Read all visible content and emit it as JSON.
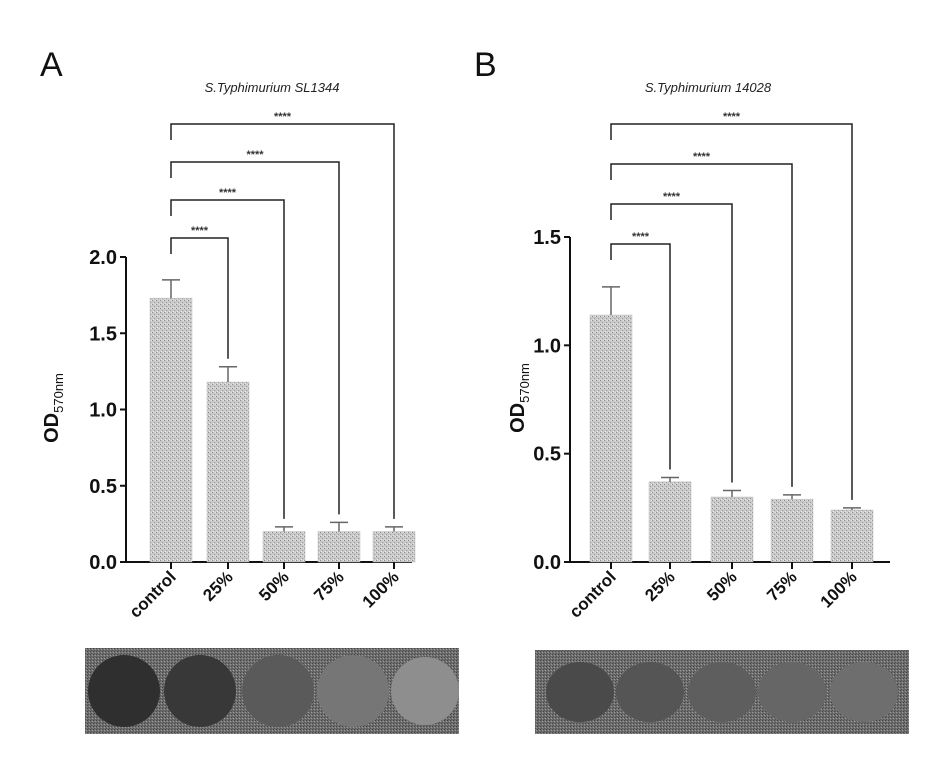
{
  "panels": [
    {
      "letter": "A",
      "title": "S.Typhimurium SL1344",
      "ylabel_main": "OD",
      "ylabel_sub": "570nm"
    },
    {
      "letter": "B",
      "title": "S.Typhimurium 14028",
      "ylabel_main": "OD",
      "ylabel_sub": "570nm"
    }
  ],
  "chart_data": [
    {
      "type": "bar",
      "title": "S.Typhimurium SL1344",
      "ylabel": "OD570nm",
      "xlabel": "",
      "categories": [
        "control",
        "25%",
        "50%",
        "75%",
        "100%"
      ],
      "values": [
        1.73,
        1.18,
        0.2,
        0.2,
        0.2
      ],
      "errors": [
        0.12,
        0.1,
        0.03,
        0.06,
        0.03
      ],
      "ylim": [
        0,
        2.0
      ],
      "yticks": [
        "0.0",
        "0.5",
        "1.0",
        "1.5",
        "2.0"
      ],
      "comparisons": [
        "****",
        "****",
        "****",
        "****"
      ]
    },
    {
      "type": "bar",
      "title": "S.Typhimurium 14028",
      "ylabel": "OD570nm",
      "xlabel": "",
      "categories": [
        "control",
        "25%",
        "50%",
        "75%",
        "100%"
      ],
      "values": [
        1.14,
        0.37,
        0.3,
        0.29,
        0.24
      ],
      "errors": [
        0.13,
        0.02,
        0.03,
        0.02,
        0.01
      ],
      "ylim": [
        0,
        1.5
      ],
      "yticks": [
        "0.0",
        "0.5",
        "1.0",
        "1.5"
      ],
      "comparisons": [
        "****",
        "****",
        "****",
        "****"
      ]
    }
  ]
}
